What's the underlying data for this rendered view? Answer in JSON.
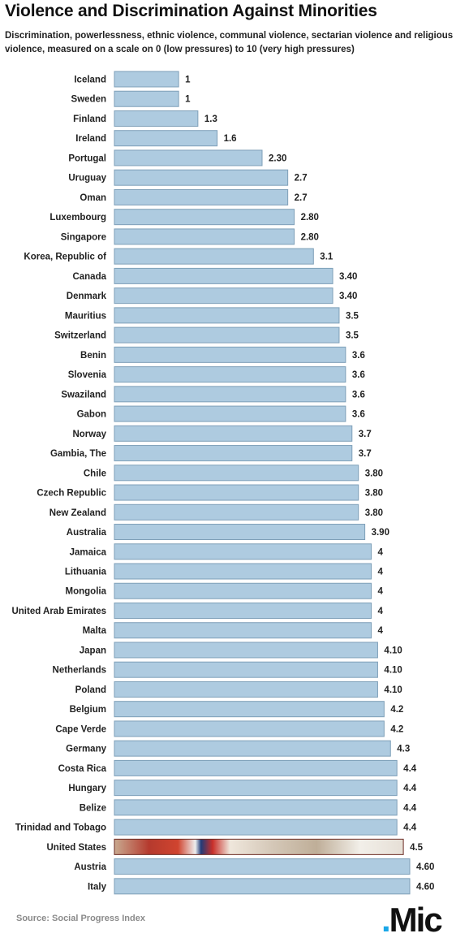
{
  "chart_data": {
    "type": "bar",
    "orientation": "horizontal",
    "title": "Violence and Discrimination Against Minorities",
    "subtitle": "Discrimination, powerlessness, ethnic violence, communal violence, sectarian violence  and religious violence, measured on a scale on 0 (low pressures) to 10 (very high pressures)",
    "categories": [
      "Iceland",
      "Sweden",
      "Finland",
      "Ireland",
      "Portugal",
      "Uruguay",
      "Oman",
      "Luxembourg",
      "Singapore",
      "Korea, Republic of",
      "Canada",
      "Denmark",
      "Mauritius",
      "Switzerland",
      "Benin",
      "Slovenia",
      "Swaziland",
      "Gabon",
      "Norway",
      "Gambia, The",
      "Chile",
      "Czech Republic",
      "New Zealand",
      "Australia",
      "Jamaica",
      "Lithuania",
      "Mongolia",
      "United Arab Emirates",
      "Malta",
      "Japan",
      "Netherlands",
      "Poland",
      "Belgium",
      "Cape Verde",
      "Germany",
      "Costa Rica",
      "Hungary",
      "Belize",
      "Trinidad and Tobago",
      "United States",
      "Austria",
      "Italy"
    ],
    "values": [
      1,
      1,
      1.3,
      1.6,
      2.3,
      2.7,
      2.7,
      2.8,
      2.8,
      3.1,
      3.4,
      3.4,
      3.5,
      3.5,
      3.6,
      3.6,
      3.6,
      3.6,
      3.7,
      3.7,
      3.8,
      3.8,
      3.8,
      3.9,
      4,
      4,
      4,
      4,
      4,
      4.1,
      4.1,
      4.1,
      4.2,
      4.2,
      4.3,
      4.4,
      4.4,
      4.4,
      4.4,
      4.5,
      4.6,
      4.6
    ],
    "value_labels": [
      "1",
      "1",
      "1.3",
      "1.6",
      "2.30",
      "2.7",
      "2.7",
      "2.80",
      "2.80",
      "3.1",
      "3.40",
      "3.40",
      "3.5",
      "3.5",
      "3.6",
      "3.6",
      "3.6",
      "3.6",
      "3.7",
      "3.7",
      "3.80",
      "3.80",
      "3.80",
      "3.90",
      "4",
      "4",
      "4",
      "4",
      "4",
      "4.10",
      "4.10",
      "4.10",
      "4.2",
      "4.2",
      "4.3",
      "4.4",
      "4.4",
      "4.4",
      "4.4",
      "4.5",
      "4.60",
      "4.60"
    ],
    "highlight": "United States",
    "xlim": [
      0,
      4.6
    ],
    "grid": false,
    "legend": "none",
    "colors": {
      "bar": "#aecbe0",
      "bar_border": "#7e9fb8",
      "highlight_border": "#6b2a22",
      "label": "#222222"
    }
  },
  "source": "Source: Social Progress Index",
  "logo": {
    "dot": ".",
    "text": "Mic",
    "dot_color": "#1aa7e8"
  }
}
